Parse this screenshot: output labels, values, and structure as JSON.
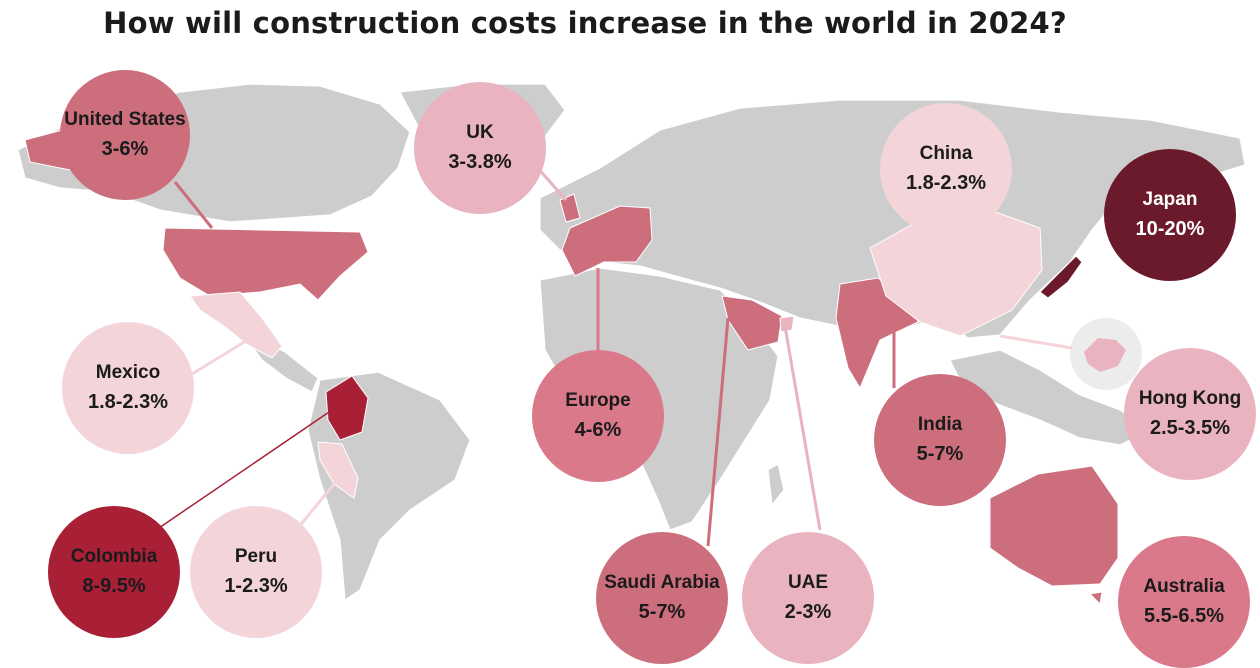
{
  "title": "How will construction costs increase in the world in 2024?",
  "colors": {
    "land": "#cdcdcd",
    "tier_dark": "#6b1a2b",
    "tier_red": "#a81f36",
    "tier_mid": "#cc6e7c",
    "tier_rose": "#d9798a",
    "tier_pale": "#e9b4bf",
    "tier_faint": "#f2d4d9"
  },
  "regions": [
    {
      "name": "United States",
      "rate": "3-6%"
    },
    {
      "name": "UK",
      "rate": "3-3.8%"
    },
    {
      "name": "China",
      "rate": "1.8-2.3%"
    },
    {
      "name": "Japan",
      "rate": "10-20%"
    },
    {
      "name": "Mexico",
      "rate": "1.8-2.3%"
    },
    {
      "name": "Europe",
      "rate": "4-6%"
    },
    {
      "name": "India",
      "rate": "5-7%"
    },
    {
      "name": "Hong Kong",
      "rate": "2.5-3.5%"
    },
    {
      "name": "Colombia",
      "rate": "8-9.5%"
    },
    {
      "name": "Peru",
      "rate": "1-2.3%"
    },
    {
      "name": "Saudi Arabia",
      "rate": "5-7%"
    },
    {
      "name": "UAE",
      "rate": "2-3%"
    },
    {
      "name": "Australia",
      "rate": "5.5-6.5%"
    }
  ]
}
